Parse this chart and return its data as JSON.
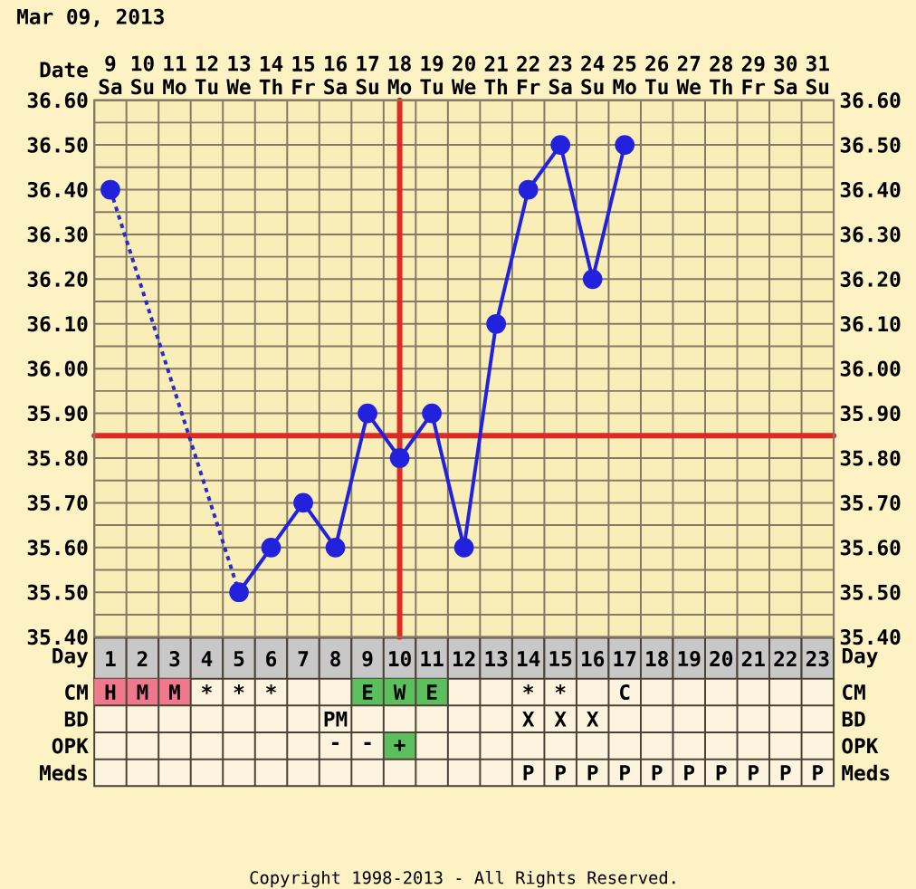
{
  "chart_data": [
    {
      "type": "line",
      "title": "Mar 09, 2013",
      "xlabel": "Day",
      "x2label": "Date",
      "series": [
        {
          "color": "#2222dd",
          "x": [
            1,
            2,
            3,
            4,
            5,
            6,
            7,
            8,
            9,
            10,
            11,
            12,
            13,
            14,
            15,
            16,
            17
          ],
          "values": [
            36.4,
            null,
            null,
            null,
            35.5,
            35.6,
            35.7,
            35.6,
            35.9,
            35.8,
            35.9,
            35.6,
            36.1,
            36.4,
            36.5,
            36.2,
            36.5
          ]
        },
        {
          "color": "#2a2ac8",
          "x": [
            1,
            5
          ],
          "values": [
            36.4,
            35.5
          ],
          "line_style": "dotted",
          "marker": "none"
        }
      ],
      "xlim": [
        0.5,
        23.5
      ],
      "xticks": [
        1,
        2,
        3,
        4,
        5,
        6,
        7,
        8,
        9,
        10,
        11,
        12,
        13,
        14,
        15,
        16,
        17,
        18,
        19,
        20,
        21,
        22,
        23
      ],
      "x2lim": [
        8.5,
        31.5
      ],
      "x2ticks": [
        {
          "value": 9,
          "label": "9 Sa"
        },
        {
          "value": 10,
          "label": "10 Su"
        },
        {
          "value": 11,
          "label": "11 Mo"
        },
        {
          "value": 12,
          "label": "12 Tu"
        },
        {
          "value": 13,
          "label": "13 We"
        },
        {
          "value": 14,
          "label": "14 Th"
        },
        {
          "value": 15,
          "label": "15 Fr"
        },
        {
          "value": 16,
          "label": "16 Sa"
        },
        {
          "value": 17,
          "label": "17 Su"
        },
        {
          "value": 18,
          "label": "18 Mo"
        },
        {
          "value": 19,
          "label": "19 Tu"
        },
        {
          "value": 20,
          "label": "20 We"
        },
        {
          "value": 21,
          "label": "21 Th"
        },
        {
          "value": 22,
          "label": "22 Fr"
        },
        {
          "value": 23,
          "label": "23 Sa"
        },
        {
          "value": 24,
          "label": "24 Su"
        },
        {
          "value": 25,
          "label": "25 Mo"
        },
        {
          "value": 26,
          "label": "26 Tu"
        },
        {
          "value": 27,
          "label": "27 We"
        },
        {
          "value": 28,
          "label": "28 Th"
        },
        {
          "value": 29,
          "label": "29 Fr"
        },
        {
          "value": 30,
          "label": "30 Sa"
        },
        {
          "value": 31,
          "label": "31 Su"
        }
      ],
      "ylim": [
        35.4,
        36.6
      ],
      "yticks": [
        {
          "value": 35.4,
          "label": "35.40"
        },
        {
          "value": 35.45,
          "label": null
        },
        {
          "value": 35.5,
          "label": "35.50"
        },
        {
          "value": 35.55,
          "label": null
        },
        {
          "value": 35.6,
          "label": "35.60"
        },
        {
          "value": 35.65,
          "label": null
        },
        {
          "value": 35.7,
          "label": "35.70"
        },
        {
          "value": 35.75,
          "label": null
        },
        {
          "value": 35.8,
          "label": "35.80"
        },
        {
          "value": 35.9,
          "label": "35.90"
        },
        {
          "value": 35.95,
          "label": null
        },
        {
          "value": 36.0,
          "label": "36.00"
        },
        {
          "value": 36.05,
          "label": null
        },
        {
          "value": 36.1,
          "label": "36.10"
        },
        {
          "value": 36.15,
          "label": null
        },
        {
          "value": 36.2,
          "label": "36.20"
        },
        {
          "value": 36.25,
          "label": null
        },
        {
          "value": 36.3,
          "label": "36.30"
        },
        {
          "value": 36.35,
          "label": null
        },
        {
          "value": 36.4,
          "label": "36.40"
        },
        {
          "value": 36.45,
          "label": null
        },
        {
          "value": 36.5,
          "label": "36.50"
        },
        {
          "value": 36.55,
          "label": null
        },
        {
          "value": 36.6,
          "label": "36.60"
        }
      ],
      "y2lim": [
        35.4,
        36.6
      ],
      "y2ticks": [
        {
          "value": 35.4,
          "label": "35.40"
        },
        {
          "value": 35.5,
          "label": "35.50"
        },
        {
          "value": 35.6,
          "label": "35.60"
        },
        {
          "value": 35.7,
          "label": "35.70"
        },
        {
          "value": 35.8,
          "label": "35.80"
        },
        {
          "value": 35.9,
          "label": "35.90"
        },
        {
          "value": 36.0,
          "label": "36.00"
        },
        {
          "value": 36.1,
          "label": "36.10"
        },
        {
          "value": 36.2,
          "label": "36.20"
        },
        {
          "value": 36.3,
          "label": "36.30"
        },
        {
          "value": 36.4,
          "label": "36.40"
        },
        {
          "value": 36.5,
          "label": "36.50"
        },
        {
          "value": 36.6,
          "label": "36.60"
        }
      ],
      "grid": true,
      "marker": "circle",
      "line_style": "solid",
      "ref_lines": [
        {
          "axis": "x",
          "value": 10,
          "color": "#dc2a24"
        },
        {
          "axis": "y",
          "value": 35.85,
          "color": "#dc2a24"
        }
      ]
    },
    {
      "type": "other",
      "y_categories": [
        "CM",
        "BD",
        "OPK",
        "Meds"
      ],
      "y2_categories": [
        "CM",
        "BD",
        "OPK",
        "Meds"
      ],
      "cell_labels": [
        [
          "H",
          "M",
          "M",
          "*",
          "*",
          "*",
          null,
          null,
          "E",
          "W",
          "E",
          null,
          null,
          "*",
          "*",
          null,
          "C",
          null,
          null,
          null,
          null,
          null,
          null
        ],
        [
          null,
          null,
          null,
          null,
          null,
          null,
          null,
          "PM",
          null,
          null,
          null,
          null,
          null,
          "X",
          "X",
          "X",
          null,
          null,
          null,
          null,
          null,
          null,
          null
        ],
        [
          null,
          null,
          null,
          null,
          null,
          null,
          null,
          "-",
          "-",
          "+",
          null,
          null,
          null,
          null,
          null,
          null,
          null,
          null,
          null,
          null,
          null,
          null,
          null
        ],
        [
          null,
          null,
          null,
          null,
          null,
          null,
          null,
          null,
          null,
          null,
          null,
          null,
          null,
          "P",
          "P",
          "P",
          "P",
          "P",
          "P",
          "P",
          "P",
          "P",
          "P"
        ]
      ],
      "colors": [
        [
          "#f0788c",
          "#f0788c",
          "#f0788c",
          null,
          null,
          null,
          null,
          null,
          "#5cbe5c",
          "#5cbe5c",
          "#5cbe5c",
          null,
          null,
          null,
          null,
          null,
          null,
          null,
          null,
          null,
          null,
          null,
          null
        ],
        [
          null,
          null,
          null,
          null,
          null,
          null,
          null,
          null,
          null,
          null,
          null,
          null,
          null,
          null,
          null,
          null,
          null,
          null,
          null,
          null,
          null,
          null,
          null
        ],
        [
          null,
          null,
          null,
          null,
          null,
          null,
          null,
          null,
          null,
          "#5cbe5c",
          null,
          null,
          null,
          null,
          null,
          null,
          null,
          null,
          null,
          null,
          null,
          null,
          null
        ],
        [
          null,
          null,
          null,
          null,
          null,
          null,
          null,
          null,
          null,
          null,
          null,
          null,
          null,
          null,
          null,
          null,
          null,
          null,
          null,
          null,
          null,
          null,
          null
        ]
      ],
      "annotations": [
        "Copyright 1998-2013 - All Rights Reserved."
      ]
    }
  ]
}
